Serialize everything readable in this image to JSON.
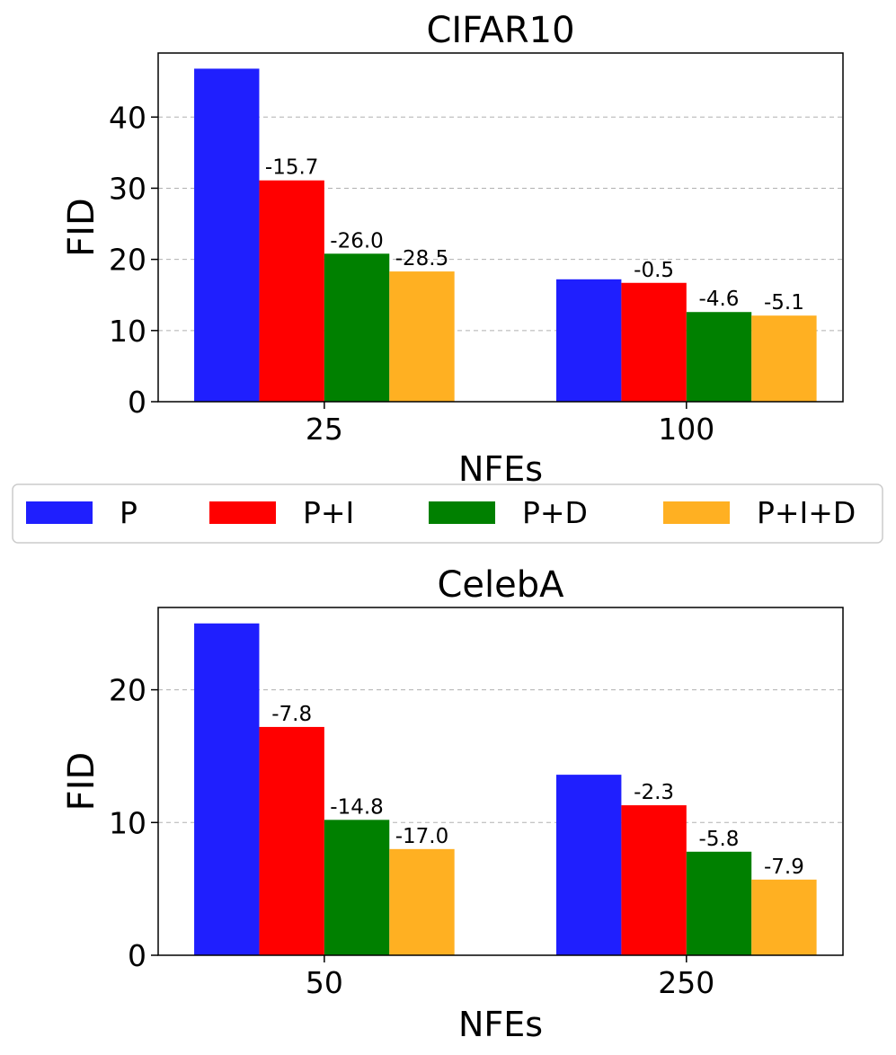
{
  "chart_data": [
    {
      "type": "bar",
      "title": "CIFAR10",
      "xlabel": "NFEs",
      "ylabel": "FID",
      "categories": [
        "25",
        "100"
      ],
      "ylim": [
        0,
        49
      ],
      "yticks": [
        0,
        10,
        20,
        30,
        40
      ],
      "grid": "y",
      "series": [
        {
          "name": "P",
          "values": [
            46.8,
            17.2
          ],
          "labels": [
            "",
            ""
          ]
        },
        {
          "name": "P+I",
          "values": [
            31.1,
            16.7
          ],
          "labels": [
            "-15.7",
            "-0.5"
          ]
        },
        {
          "name": "P+D",
          "values": [
            20.8,
            12.6
          ],
          "labels": [
            "-26.0",
            "-4.6"
          ]
        },
        {
          "name": "P+I+D",
          "values": [
            18.3,
            12.1
          ],
          "labels": [
            "-28.5",
            "-5.1"
          ]
        }
      ]
    },
    {
      "type": "bar",
      "title": "CelebA",
      "xlabel": "NFEs",
      "ylabel": "FID",
      "categories": [
        "50",
        "250"
      ],
      "ylim": [
        0,
        26.2
      ],
      "yticks": [
        0,
        10,
        20
      ],
      "grid": "y",
      "series": [
        {
          "name": "P",
          "values": [
            25.0,
            13.6
          ],
          "labels": [
            "",
            ""
          ]
        },
        {
          "name": "P+I",
          "values": [
            17.2,
            11.3
          ],
          "labels": [
            "-7.8",
            "-2.3"
          ]
        },
        {
          "name": "P+D",
          "values": [
            10.2,
            7.8
          ],
          "labels": [
            "-14.8",
            "-5.8"
          ]
        },
        {
          "name": "P+I+D",
          "values": [
            8.0,
            5.7
          ],
          "labels": [
            "-17.0",
            "-7.9"
          ]
        }
      ]
    }
  ],
  "legend": {
    "placement": "between-panels",
    "items": [
      {
        "label": "P",
        "color": "#1f1ffe"
      },
      {
        "label": "P+I",
        "color": "#ff0000"
      },
      {
        "label": "P+D",
        "color": "#008000"
      },
      {
        "label": "P+I+D",
        "color": "#ffb022"
      }
    ]
  }
}
